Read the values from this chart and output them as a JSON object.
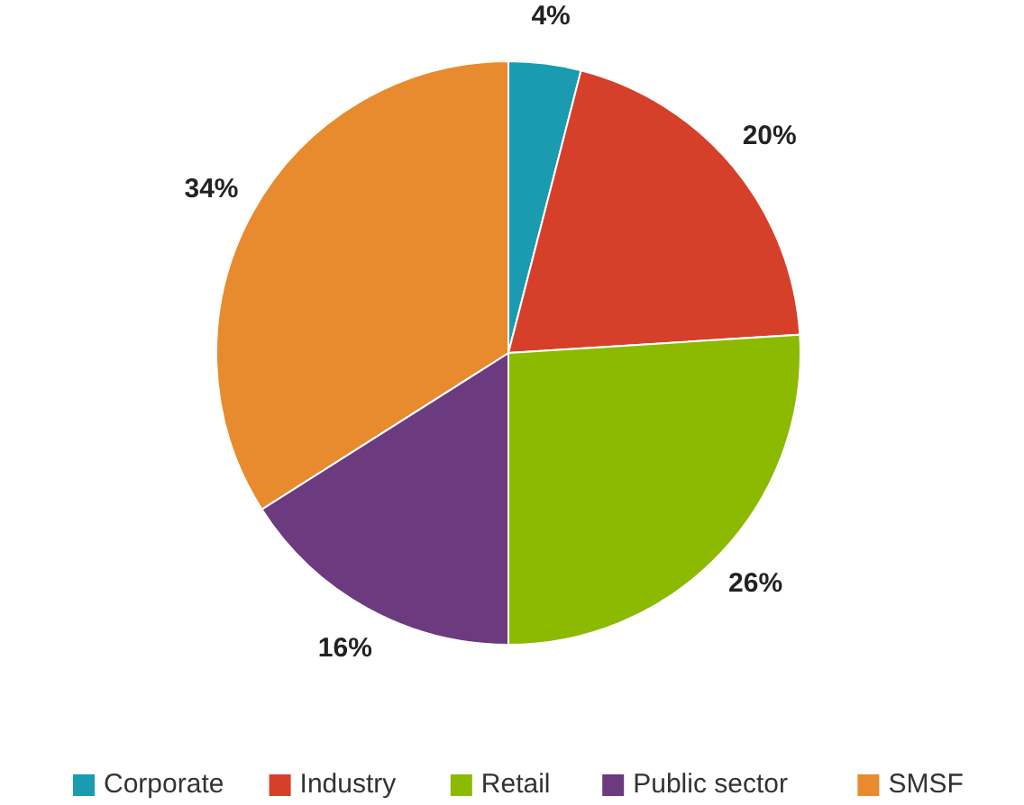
{
  "chart_data": {
    "type": "pie",
    "categories": [
      "Corporate",
      "Industry",
      "Retail",
      "Public sector",
      "SMSF"
    ],
    "values": [
      4,
      20,
      26,
      16,
      34
    ],
    "colors": [
      "#1b9bb0",
      "#d6402a",
      "#8cba00",
      "#6c3a7e",
      "#e88a2e"
    ],
    "value_labels": [
      "4%",
      "20%",
      "26%",
      "16%",
      "34%"
    ],
    "legend": "bottom"
  }
}
